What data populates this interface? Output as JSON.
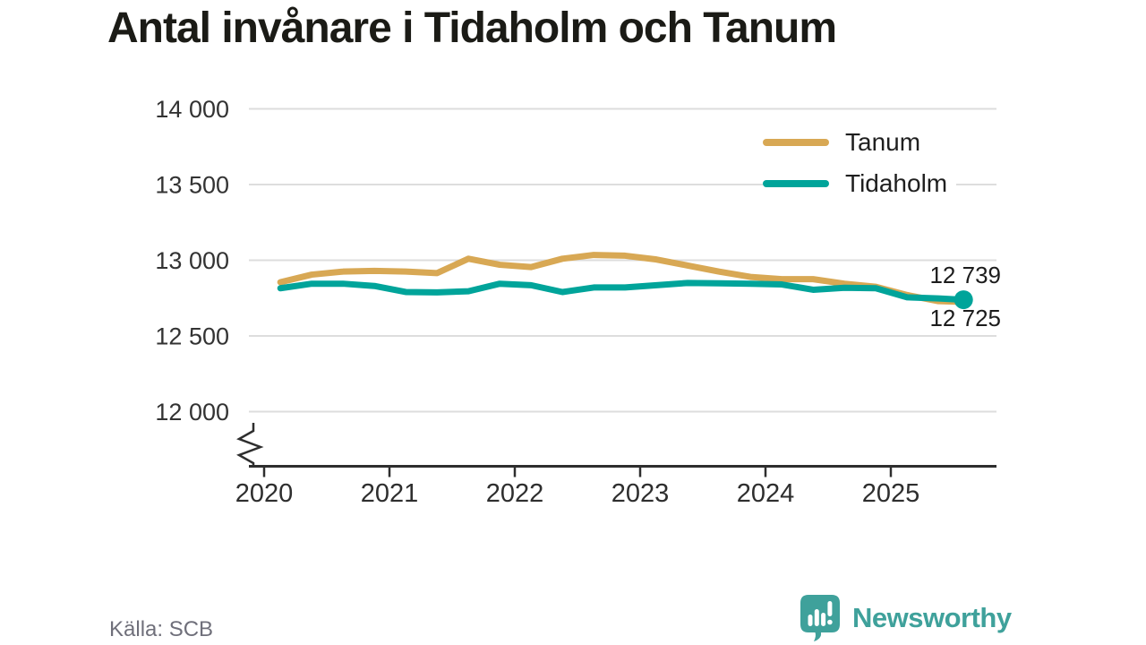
{
  "title": "Antal invånare i Tidaholm och Tanum",
  "source": "Källa: SCB",
  "logo": {
    "text": "Newsworthy",
    "color": "#3FA19B"
  },
  "chart_data": {
    "type": "line",
    "title": "Antal invånare i Tidaholm och Tanum",
    "xlabel": "",
    "ylabel": "",
    "x_ticks": [
      "2020",
      "2021",
      "2022",
      "2023",
      "2024",
      "2025"
    ],
    "y_ticks": [
      "12 000",
      "12 500",
      "13 000",
      "13 500",
      "14 000"
    ],
    "ylim": [
      12000,
      14000
    ],
    "axis_break": true,
    "grid": true,
    "legend_position": "top-right",
    "grid_color": "#DDDDDD",
    "axis_color": "#2E2E2E",
    "label_color": "#2E2E2E",
    "x": [
      2020.13,
      2020.38,
      2020.63,
      2020.88,
      2021.13,
      2021.38,
      2021.63,
      2021.88,
      2022.13,
      2022.38,
      2022.63,
      2022.88,
      2023.13,
      2023.38,
      2023.63,
      2023.88,
      2024.13,
      2024.38,
      2024.63,
      2024.88,
      2025.13,
      2025.38,
      2025.58
    ],
    "series": [
      {
        "name": "Tanum",
        "color": "#D8A854",
        "end_label": "12 725",
        "end_dot": false,
        "values": [
          12855,
          12905,
          12925,
          12930,
          12925,
          12915,
          13010,
          12970,
          12955,
          13010,
          13035,
          13030,
          13005,
          12965,
          12925,
          12890,
          12875,
          12875,
          12845,
          12825,
          12770,
          12730,
          12725
        ]
      },
      {
        "name": "Tidaholm",
        "color": "#00A49A",
        "end_label": "12 739",
        "end_dot": true,
        "values": [
          12815,
          12845,
          12845,
          12830,
          12790,
          12788,
          12795,
          12845,
          12835,
          12790,
          12820,
          12820,
          12835,
          12850,
          12848,
          12845,
          12840,
          12805,
          12818,
          12815,
          12755,
          12748,
          12739
        ]
      }
    ]
  }
}
